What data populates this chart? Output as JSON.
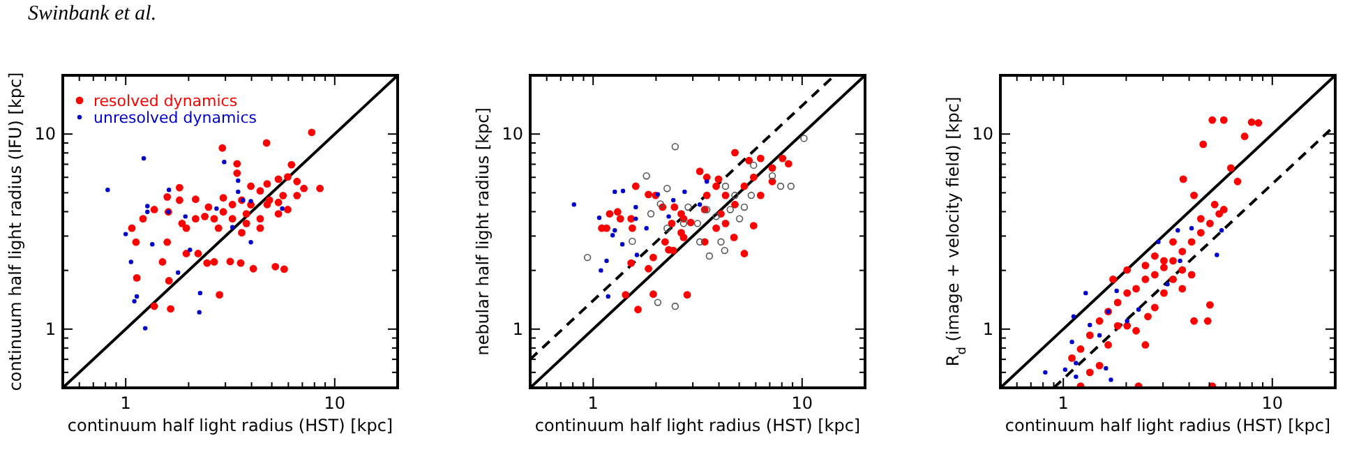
{
  "chart_data": [
    {
      "type": "scatter",
      "xlabel": "continuum half light radius (HST) [kpc]",
      "ylabel": "continuum half light radius (IFU) [kpc]",
      "annotations": [
        "Swinbank et al."
      ],
      "log": "xy",
      "xlim": [
        0.5,
        20
      ],
      "ylim": [
        0.5,
        20
      ],
      "xticks": [
        {
          "value": 0.6,
          "label": null
        },
        {
          "value": 0.7,
          "label": null
        },
        {
          "value": 0.8,
          "label": null
        },
        {
          "value": 0.9,
          "label": null
        },
        {
          "value": 1,
          "label": "1"
        },
        {
          "value": 2,
          "label": null
        },
        {
          "value": 3,
          "label": null
        },
        {
          "value": 4,
          "label": null
        },
        {
          "value": 5,
          "label": null
        },
        {
          "value": 6,
          "label": null
        },
        {
          "value": 7,
          "label": null
        },
        {
          "value": 8,
          "label": null
        },
        {
          "value": 9,
          "label": null
        },
        {
          "value": 10,
          "label": "10"
        }
      ],
      "yticks": [
        {
          "value": 0.6,
          "label": null
        },
        {
          "value": 0.7,
          "label": null
        },
        {
          "value": 0.8,
          "label": null
        },
        {
          "value": 0.9,
          "label": null
        },
        {
          "value": 1,
          "label": "1"
        },
        {
          "value": 2,
          "label": null
        },
        {
          "value": 3,
          "label": null
        },
        {
          "value": 4,
          "label": null
        },
        {
          "value": 5,
          "label": null
        },
        {
          "value": 6,
          "label": null
        },
        {
          "value": 7,
          "label": null
        },
        {
          "value": 8,
          "label": null
        },
        {
          "value": 9,
          "label": null
        },
        {
          "value": 10,
          "label": "10"
        }
      ],
      "marker": "circle",
      "legend": "top left",
      "series": [
        {
          "name": "resolved dynamics",
          "color": "#ff0000",
          "x": [
            7.76,
            2.9,
            4.72,
            6.21,
            3.41,
            3.41,
            8.5,
            7.12,
            1.81,
            1.81,
            1.58,
            2.16,
            2.49,
            2.93,
            3.59,
            3.97,
            4.4,
            4.75,
            5.38,
            5.96,
            6.6,
            5.66,
            4.87,
            5.38,
            4.4,
            3.78,
            3.24,
            2.65,
            2.16,
            1.95,
            1.86,
            1.6,
            1.37,
            1.21,
            1.07,
            1.12,
            1.58,
            1.95,
            1.5,
            2.22,
            2.45,
            2.65,
            3.16,
            3.55,
            4.08,
            5.2,
            5.73,
            1.13,
            1.61,
            2.81,
            1.37,
            1.64,
            3.78,
            2.78,
            2.39,
            5.96,
            6.6,
            5.38,
            4.4,
            3.59,
            4.75,
            3.24,
            3.97,
            2.93
          ],
          "values": [
            10.2,
            8.48,
            9.0,
            6.96,
            7.04,
            6.3,
            5.26,
            5.26,
            5.31,
            4.58,
            4.76,
            4.63,
            4.22,
            4.71,
            4.58,
            4.34,
            5.11,
            5.55,
            5.87,
            6.03,
            5.71,
            4.84,
            4.58,
            4.46,
            3.68,
            3.48,
            3.68,
            3.68,
            3.68,
            3.29,
            3.48,
            3.99,
            4.1,
            3.68,
            3.29,
            2.79,
            2.79,
            2.44,
            2.21,
            2.44,
            2.18,
            2.21,
            2.22,
            2.18,
            2.04,
            2.09,
            2.03,
            1.83,
            1.77,
            1.5,
            1.31,
            1.27,
            3.9,
            3.29,
            3.78,
            4.1,
            4.84,
            3.9,
            3.29,
            3.12,
            4.35,
            4.35,
            5.4,
            3.99
          ]
        },
        {
          "name": "unresolved dynamics",
          "color": "#0000cc",
          "x": [
            0.82,
            1.22,
            1.27,
            1.27,
            1.0,
            1.34,
            1.06,
            1.13,
            1.1,
            1.24,
            1.61,
            1.6,
            1.78,
            1.93,
            2.03,
            2.27,
            2.25,
            2.96,
            3.45,
            3.45,
            3.24,
            3.63,
            3.97,
            3.97,
            5.61,
            2.72
          ],
          "values": [
            5.17,
            7.51,
            4.27,
            3.99,
            3.07,
            2.72,
            2.21,
            1.47,
            1.39,
            1.01,
            5.17,
            3.99,
            1.95,
            3.78,
            2.55,
            1.53,
            1.22,
            7.19,
            5.77,
            5.06,
            3.33,
            4.58,
            4.53,
            2.79,
            4.15,
            4.15
          ]
        },
        {
          "type": "line",
          "color": "#000000",
          "line_style": "solid",
          "marker": "none",
          "x": [
            0.5,
            20
          ],
          "values": [
            0.5,
            20
          ]
        }
      ]
    },
    {
      "type": "scatter",
      "xlabel": "continuum half light radius (HST) [kpc]",
      "ylabel": "nebular half light radius [kpc]",
      "log": "xy",
      "xlim": [
        0.5,
        20
      ],
      "ylim": [
        0.5,
        20
      ],
      "xticks": [
        {
          "value": 0.6,
          "label": null
        },
        {
          "value": 0.7,
          "label": null
        },
        {
          "value": 0.8,
          "label": null
        },
        {
          "value": 0.9,
          "label": null
        },
        {
          "value": 1,
          "label": "1"
        },
        {
          "value": 2,
          "label": null
        },
        {
          "value": 3,
          "label": null
        },
        {
          "value": 4,
          "label": null
        },
        {
          "value": 5,
          "label": null
        },
        {
          "value": 6,
          "label": null
        },
        {
          "value": 7,
          "label": null
        },
        {
          "value": 8,
          "label": null
        },
        {
          "value": 9,
          "label": null
        },
        {
          "value": 10,
          "label": "10"
        }
      ],
      "yticks": [
        {
          "value": 0.6,
          "label": null
        },
        {
          "value": 0.7,
          "label": null
        },
        {
          "value": 0.8,
          "label": null
        },
        {
          "value": 0.9,
          "label": null
        },
        {
          "value": 1,
          "label": "1"
        },
        {
          "value": 2,
          "label": null
        },
        {
          "value": 3,
          "label": null
        },
        {
          "value": 4,
          "label": null
        },
        {
          "value": 5,
          "label": null
        },
        {
          "value": 6,
          "label": null
        },
        {
          "value": 7,
          "label": null
        },
        {
          "value": 8,
          "label": null
        },
        {
          "value": 9,
          "label": null
        },
        {
          "value": 10,
          "label": "10"
        }
      ],
      "marker": "circle",
      "series": [
        {
          "color": "#ff0000",
          "x": [
            1.64,
            1.43,
            1.94,
            2.82,
            1.52,
            1.84,
            1.94,
            2.3,
            2.42,
            1.1,
            1.16,
            1.2,
            1.31,
            1.35,
            1.52,
            1.54,
            1.6,
            1.84,
            1.99,
            2.15,
            2.45,
            2.64,
            2.38,
            2.71,
            2.93,
            2.64,
            3.24,
            3.5,
            3.98,
            4.77,
            5.57,
            6.33,
            7.2,
            8.06,
            8.61,
            5.86,
            5.29,
            4.3,
            3.88,
            3.5,
            3.42,
            4.77,
            4.09,
            4.3,
            5.86,
            3.42,
            3.88,
            5.29,
            4.72,
            2.21,
            2.71,
            6.33,
            7.2
          ],
          "values": [
            1.26,
            1.5,
            1.51,
            1.5,
            2.18,
            2.04,
            2.33,
            2.55,
            2.53,
            3.29,
            3.29,
            3.9,
            3.99,
            3.68,
            3.68,
            3.29,
            5.4,
            4.9,
            4.85,
            4.22,
            4.22,
            3.9,
            3.48,
            3.68,
            3.52,
            3.12,
            6.44,
            6.0,
            5.87,
            8.03,
            7.31,
            7.5,
            6.7,
            7.5,
            7.04,
            6.0,
            5.4,
            4.85,
            5.4,
            4.85,
            4.1,
            4.35,
            3.9,
            3.48,
            3.39,
            2.8,
            3.29,
            2.44,
            2.95,
            2.8,
            2.95,
            4.85,
            5.71
          ]
        },
        {
          "color": "#0000cc",
          "x": [
            0.81,
            1.07,
            1.27,
            1.24,
            1.27,
            1.16,
            1.09,
            1.18,
            1.38,
            1.6,
            1.6,
            1.8,
            2.04,
            2.3,
            2.42,
            2.74,
            3.24,
            3.5,
            1.62,
            1.39
          ],
          "values": [
            4.35,
            3.72,
            5.06,
            3.03,
            3.21,
            2.24,
            2.0,
            1.47,
            2.72,
            4.22,
            3.68,
            3.29,
            4.9,
            3.78,
            4.58,
            5.06,
            4.35,
            5.71,
            2.4,
            5.11
          ]
        },
        {
          "color": "#555555",
          "x": [
            0.94,
            1.54,
            2.04,
            2.47,
            2.47,
            1.8,
            2.26,
            2.1,
            1.89,
            2.26,
            2.71,
            3.16,
            3.24,
            3.6,
            4.26,
            3.88,
            4.53,
            4.77,
            5.71,
            5.86,
            7.2,
            7.89,
            8.84,
            10.2,
            5.29,
            5.02,
            4.09,
            4.3,
            3.5,
            2.85
          ],
          "values": [
            2.33,
            2.82,
            1.37,
            1.31,
            8.62,
            6.1,
            5.26,
            4.38,
            3.9,
            3.29,
            3.48,
            3.48,
            2.8,
            2.37,
            2.53,
            3.78,
            4.1,
            4.85,
            4.85,
            6.92,
            6.1,
            5.4,
            5.4,
            9.5,
            4.22,
            3.68,
            2.8,
            5.4,
            4.1,
            4.22
          ]
        },
        {
          "type": "line",
          "color": "#000000",
          "line_style": "solid",
          "marker": "none",
          "x": [
            0.5,
            20
          ],
          "values": [
            0.5,
            20
          ]
        },
        {
          "type": "line",
          "color": "#000000",
          "line_style": "dashed",
          "marker": "none",
          "x": [
            0.5,
            14.3
          ],
          "values": [
            0.7,
            20
          ]
        }
      ]
    },
    {
      "type": "scatter",
      "xlabel": "continuum half light radius (HST) [kpc]",
      "ylabel": "R$_{d}$ (image + velocity field) [kpc]",
      "log": "xy",
      "xlim": [
        0.5,
        20
      ],
      "ylim": [
        0.5,
        20
      ],
      "xticks": [
        {
          "value": 0.6,
          "label": null
        },
        {
          "value": 0.7,
          "label": null
        },
        {
          "value": 0.8,
          "label": null
        },
        {
          "value": 0.9,
          "label": null
        },
        {
          "value": 1,
          "label": "1"
        },
        {
          "value": 2,
          "label": null
        },
        {
          "value": 3,
          "label": null
        },
        {
          "value": 4,
          "label": null
        },
        {
          "value": 5,
          "label": null
        },
        {
          "value": 6,
          "label": null
        },
        {
          "value": 7,
          "label": null
        },
        {
          "value": 8,
          "label": null
        },
        {
          "value": 9,
          "label": null
        },
        {
          "value": 10,
          "label": "10"
        }
      ],
      "yticks": [
        {
          "value": 0.6,
          "label": null
        },
        {
          "value": 0.7,
          "label": null
        },
        {
          "value": 0.8,
          "label": null
        },
        {
          "value": 0.9,
          "label": null
        },
        {
          "value": 1,
          "label": "1"
        },
        {
          "value": 2,
          "label": null
        },
        {
          "value": 3,
          "label": null
        },
        {
          "value": 4,
          "label": null
        },
        {
          "value": 5,
          "label": null
        },
        {
          "value": 6,
          "label": null
        },
        {
          "value": 7,
          "label": null
        },
        {
          "value": 8,
          "label": null
        },
        {
          "value": 9,
          "label": null
        },
        {
          "value": 10,
          "label": "10"
        }
      ],
      "marker": "circle",
      "series": [
        {
          "color": "#ff0000",
          "x": [
            5.16,
            5.86,
            4.67,
            7.96,
            8.58,
            7.37,
            6.33,
            6.82,
            3.75,
            4.22,
            5.3,
            5.57,
            5.03,
            4.55,
            4.11,
            3.71,
            3.35,
            3.03,
            2.74,
            2.47,
            2.23,
            2.02,
            1.82,
            1.64,
            1.49,
            1.34,
            1.21,
            1.1,
            1.49,
            1.34,
            2.02,
            2.23,
            2.54,
            2.74,
            3.03,
            3.35,
            3.71,
            4.11,
            3.03,
            4.22,
            4.91,
            5.03,
            3.71,
            3.35,
            2.74,
            2.47,
            1.82,
            1.64,
            2.47,
            2.29,
            5.16,
            1.21,
            4.55,
            5.86,
            2.02,
            1.73
          ],
          "values": [
            11.8,
            11.8,
            8.86,
            11.5,
            11.4,
            9.73,
            6.7,
            5.71,
            5.87,
            4.85,
            4.35,
            3.9,
            3.48,
            3.12,
            2.8,
            2.5,
            2.24,
            2.07,
            1.9,
            1.8,
            1.61,
            1.53,
            1.37,
            1.23,
            1.1,
            0.93,
            0.79,
            0.71,
            0.65,
            0.6,
            1.04,
            0.98,
            1.16,
            1.29,
            1.53,
            1.8,
            1.61,
            1.9,
            2.24,
            1.1,
            1.1,
            1.33,
            2.01,
            2.8,
            2.37,
            2.12,
            1.04,
            0.83,
            0.83,
            0.51,
            0.51,
            0.51,
            3.68,
            4.1,
            2.01,
            1.8
          ]
        },
        {
          "color": "#0000cc",
          "x": [
            0.82,
            1.02,
            1.15,
            1.28,
            1.12,
            1.1,
            1.15,
            1.34,
            1.64,
            1.49,
            1.69,
            1.8,
            2.02,
            2.29,
            2.85,
            3.15,
            3.53,
            4.11,
            5.72,
            5.43,
            3.62,
            1.6
          ],
          "values": [
            0.6,
            0.62,
            0.57,
            1.53,
            1.16,
            0.86,
            0.67,
            1.05,
            1.23,
            0.93,
            0.55,
            1.57,
            1.1,
            1.26,
            2.8,
            1.7,
            3.21,
            3.29,
            3.21,
            2.4,
            2.24,
            0.63
          ]
        },
        {
          "type": "line",
          "color": "#000000",
          "line_style": "solid",
          "marker": "none",
          "x": [
            0.5,
            20
          ],
          "values": [
            0.5,
            20
          ]
        },
        {
          "type": "line",
          "color": "#000000",
          "line_style": "dashed",
          "marker": "none",
          "x": [
            0.9,
            20
          ],
          "values": [
            0.5,
            11.1
          ]
        }
      ]
    }
  ]
}
